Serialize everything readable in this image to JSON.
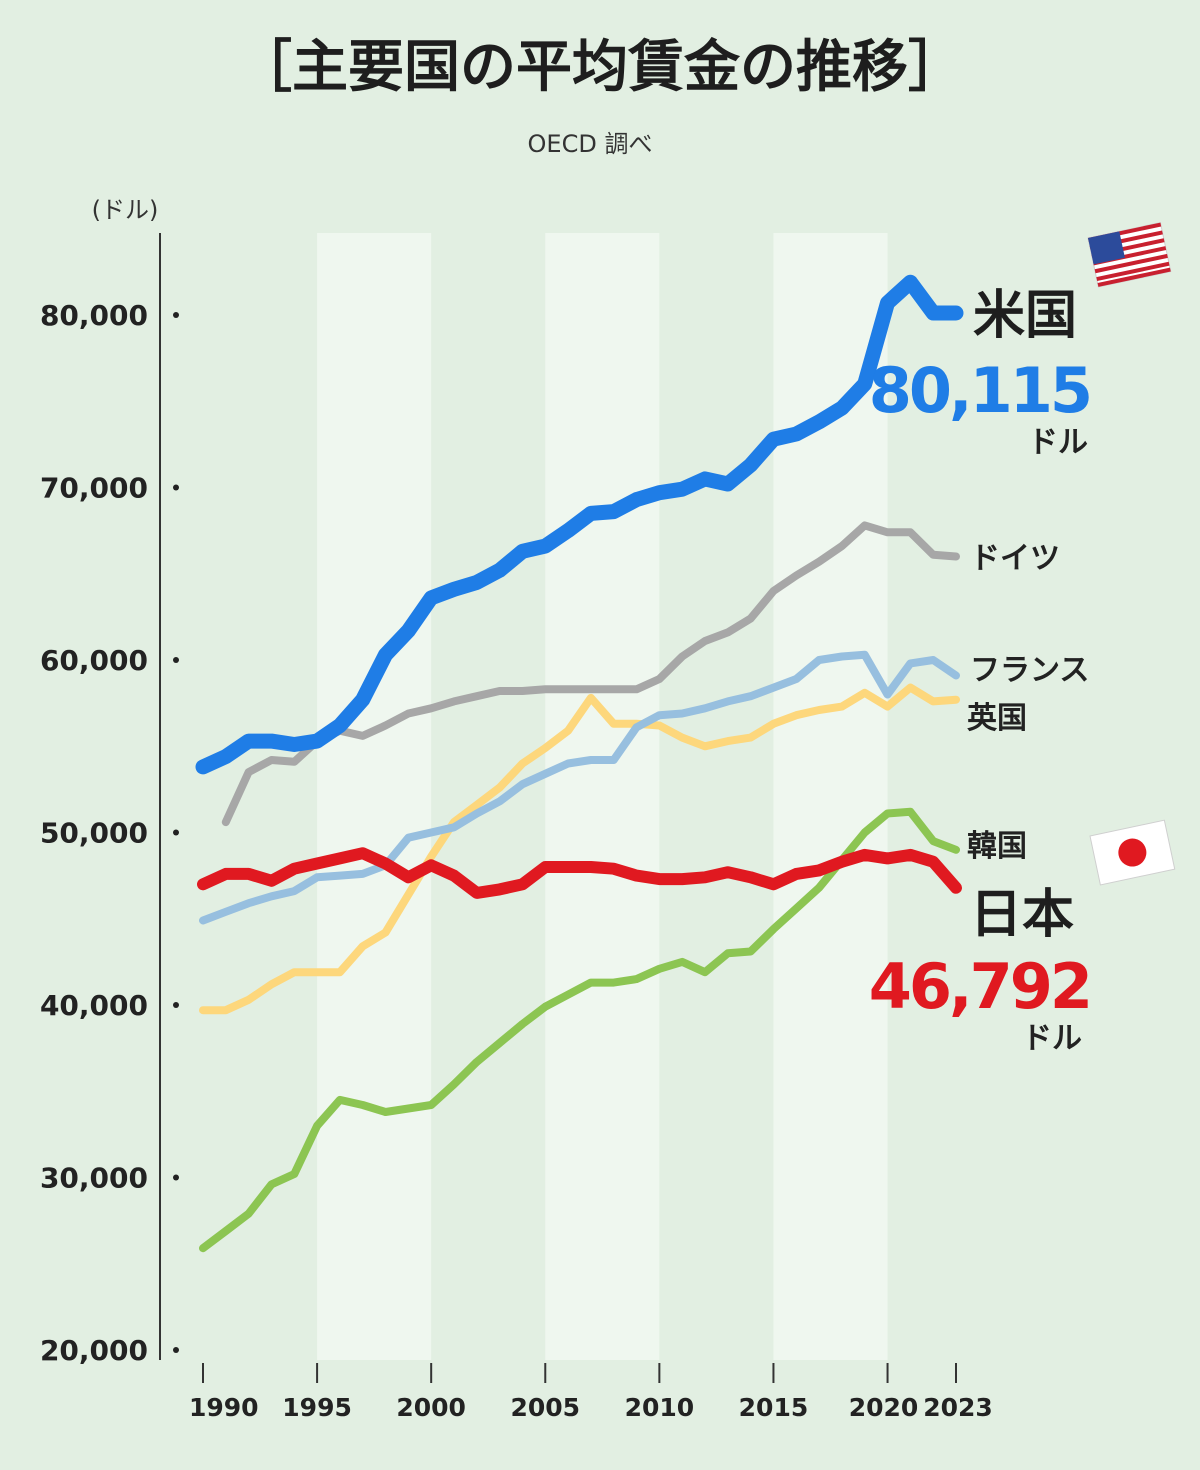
{
  "header": {
    "title": "［主要国の平均賃金の推移］",
    "source": "OECD 調べ",
    "unit": "(ドル)"
  },
  "colors": {
    "background": "#e2efe2",
    "band": "#eff7ef",
    "us": "#1f7de6",
    "germany": "#a7a7a7",
    "france": "#97bfdf",
    "uk": "#fdd77c",
    "korea": "#8cc552",
    "japan": "#e01920"
  },
  "chart_data": {
    "type": "line",
    "title": "［主要国の平均賃金の推移］",
    "subtitle": "OECD 調べ",
    "ylabel": "(ドル)",
    "ylim": [
      20000,
      85000
    ],
    "xlim": [
      1990,
      2023
    ],
    "ytick_values": [
      20000,
      30000,
      40000,
      50000,
      60000,
      70000,
      80000
    ],
    "ytick_labels": [
      "20,000",
      "30,000",
      "40,000",
      "50,000",
      "60,000",
      "70,000",
      "80,000"
    ],
    "xtick_values": [
      1990,
      1995,
      2000,
      2005,
      2010,
      2015,
      2020,
      2023
    ],
    "xtick_labels": [
      "1990",
      "1995",
      "2000",
      "2005",
      "2010",
      "2015",
      "2020",
      "2023"
    ],
    "shaded_bands": [
      [
        1995,
        2000
      ],
      [
        2005,
        2010
      ],
      [
        2015,
        2020
      ]
    ],
    "grid": false,
    "series": [
      {
        "key": "korea",
        "name": "韓国",
        "color": "#8cc552",
        "width": 8,
        "x": [
          1990,
          1991,
          1992,
          1993,
          1994,
          1995,
          1996,
          1997,
          1998,
          1999,
          2000,
          2001,
          2002,
          2003,
          2004,
          2005,
          2006,
          2007,
          2008,
          2009,
          2010,
          2011,
          2012,
          2013,
          2014,
          2015,
          2016,
          2017,
          2018,
          2019,
          2020,
          2021,
          2022,
          2023
        ],
        "y": [
          25900,
          26900,
          27900,
          29600,
          30200,
          33000,
          34500,
          34200,
          33800,
          34000,
          34200,
          35400,
          36700,
          37800,
          38900,
          39900,
          40600,
          41300,
          41300,
          41500,
          42100,
          42500,
          41900,
          43000,
          43100,
          44400,
          45600,
          46800,
          48400,
          50000,
          51100,
          51200,
          49500,
          49000
        ]
      },
      {
        "key": "uk",
        "name": "英国",
        "color": "#fdd77c",
        "width": 8,
        "x": [
          1990,
          1991,
          1992,
          1993,
          1994,
          1995,
          1996,
          1997,
          1998,
          1999,
          2000,
          2001,
          2002,
          2003,
          2004,
          2005,
          2006,
          2007,
          2008,
          2009,
          2010,
          2011,
          2012,
          2013,
          2014,
          2015,
          2016,
          2017,
          2018,
          2019,
          2020,
          2021,
          2022,
          2023
        ],
        "y": [
          39700,
          39700,
          40300,
          41200,
          41900,
          41900,
          41900,
          43400,
          44200,
          46400,
          48600,
          50600,
          51600,
          52600,
          54000,
          54900,
          55900,
          57800,
          56300,
          56300,
          56200,
          55500,
          55000,
          55300,
          55500,
          56300,
          56800,
          57100,
          57300,
          58100,
          57300,
          58400,
          57600,
          57700
        ]
      },
      {
        "key": "france",
        "name": "フランス",
        "color": "#97bfdf",
        "width": 8,
        "x": [
          1990,
          1991,
          1992,
          1993,
          1994,
          1995,
          1996,
          1997,
          1998,
          1999,
          2000,
          2001,
          2002,
          2003,
          2004,
          2005,
          2006,
          2007,
          2008,
          2009,
          2010,
          2011,
          2012,
          2013,
          2014,
          2015,
          2016,
          2017,
          2018,
          2019,
          2020,
          2021,
          2022,
          2023
        ],
        "y": [
          44900,
          45400,
          45900,
          46300,
          46600,
          47400,
          47500,
          47600,
          48100,
          49700,
          50000,
          50300,
          51100,
          51800,
          52800,
          53400,
          54000,
          54200,
          54200,
          56100,
          56800,
          56900,
          57200,
          57600,
          57900,
          58400,
          58900,
          60000,
          60200,
          60300,
          58000,
          59800,
          60000,
          59100
        ]
      },
      {
        "key": "germany",
        "name": "ドイツ",
        "color": "#a7a7a7",
        "width": 8,
        "x": [
          1991,
          1992,
          1993,
          1994,
          1995,
          1996,
          1997,
          1998,
          1999,
          2000,
          2001,
          2002,
          2003,
          2004,
          2005,
          2006,
          2007,
          2008,
          2009,
          2010,
          2011,
          2012,
          2013,
          2014,
          2015,
          2016,
          2017,
          2018,
          2019,
          2020,
          2021,
          2022,
          2023
        ],
        "y": [
          50600,
          53500,
          54200,
          54100,
          55300,
          55900,
          55600,
          56200,
          56900,
          57200,
          57600,
          57900,
          58200,
          58200,
          58300,
          58300,
          58300,
          58300,
          58300,
          58900,
          60200,
          61100,
          61600,
          62400,
          64000,
          64900,
          65700,
          66600,
          67800,
          67400,
          67400,
          66100,
          66000
        ]
      },
      {
        "key": "japan",
        "name": "日本",
        "color": "#e01920",
        "width": 12,
        "label_value": "46,792",
        "value_unit": "ドル",
        "x": [
          1990,
          1991,
          1992,
          1993,
          1994,
          1995,
          1996,
          1997,
          1998,
          1999,
          2000,
          2001,
          2002,
          2003,
          2004,
          2005,
          2006,
          2007,
          2008,
          2009,
          2010,
          2011,
          2012,
          2013,
          2014,
          2015,
          2016,
          2017,
          2018,
          2019,
          2020,
          2021,
          2022,
          2023
        ],
        "y": [
          47000,
          47600,
          47600,
          47200,
          47900,
          48200,
          48500,
          48800,
          48200,
          47400,
          48100,
          47500,
          46500,
          46700,
          47000,
          48000,
          48000,
          48000,
          47900,
          47500,
          47300,
          47300,
          47400,
          47700,
          47400,
          47000,
          47600,
          47800,
          48300,
          48700,
          48500,
          48700,
          48300,
          46792
        ]
      },
      {
        "key": "us",
        "name": "米国",
        "color": "#1f7de6",
        "width": 15,
        "label_value": "80,115",
        "value_unit": "ドル",
        "x": [
          1990,
          1991,
          1992,
          1993,
          1994,
          1995,
          1996,
          1997,
          1998,
          1999,
          2000,
          2001,
          2002,
          2003,
          2004,
          2005,
          2006,
          2007,
          2008,
          2009,
          2010,
          2011,
          2012,
          2013,
          2014,
          2015,
          2016,
          2017,
          2018,
          2019,
          2020,
          2021,
          2022,
          2023
        ],
        "y": [
          53800,
          54400,
          55300,
          55300,
          55100,
          55300,
          56200,
          57700,
          60300,
          61700,
          63600,
          64100,
          64500,
          65200,
          66300,
          66600,
          67500,
          68500,
          68600,
          69300,
          69700,
          69900,
          70500,
          70200,
          71300,
          72800,
          73100,
          73800,
          74600,
          76000,
          80700,
          81900,
          80115,
          80115
        ]
      }
    ]
  }
}
